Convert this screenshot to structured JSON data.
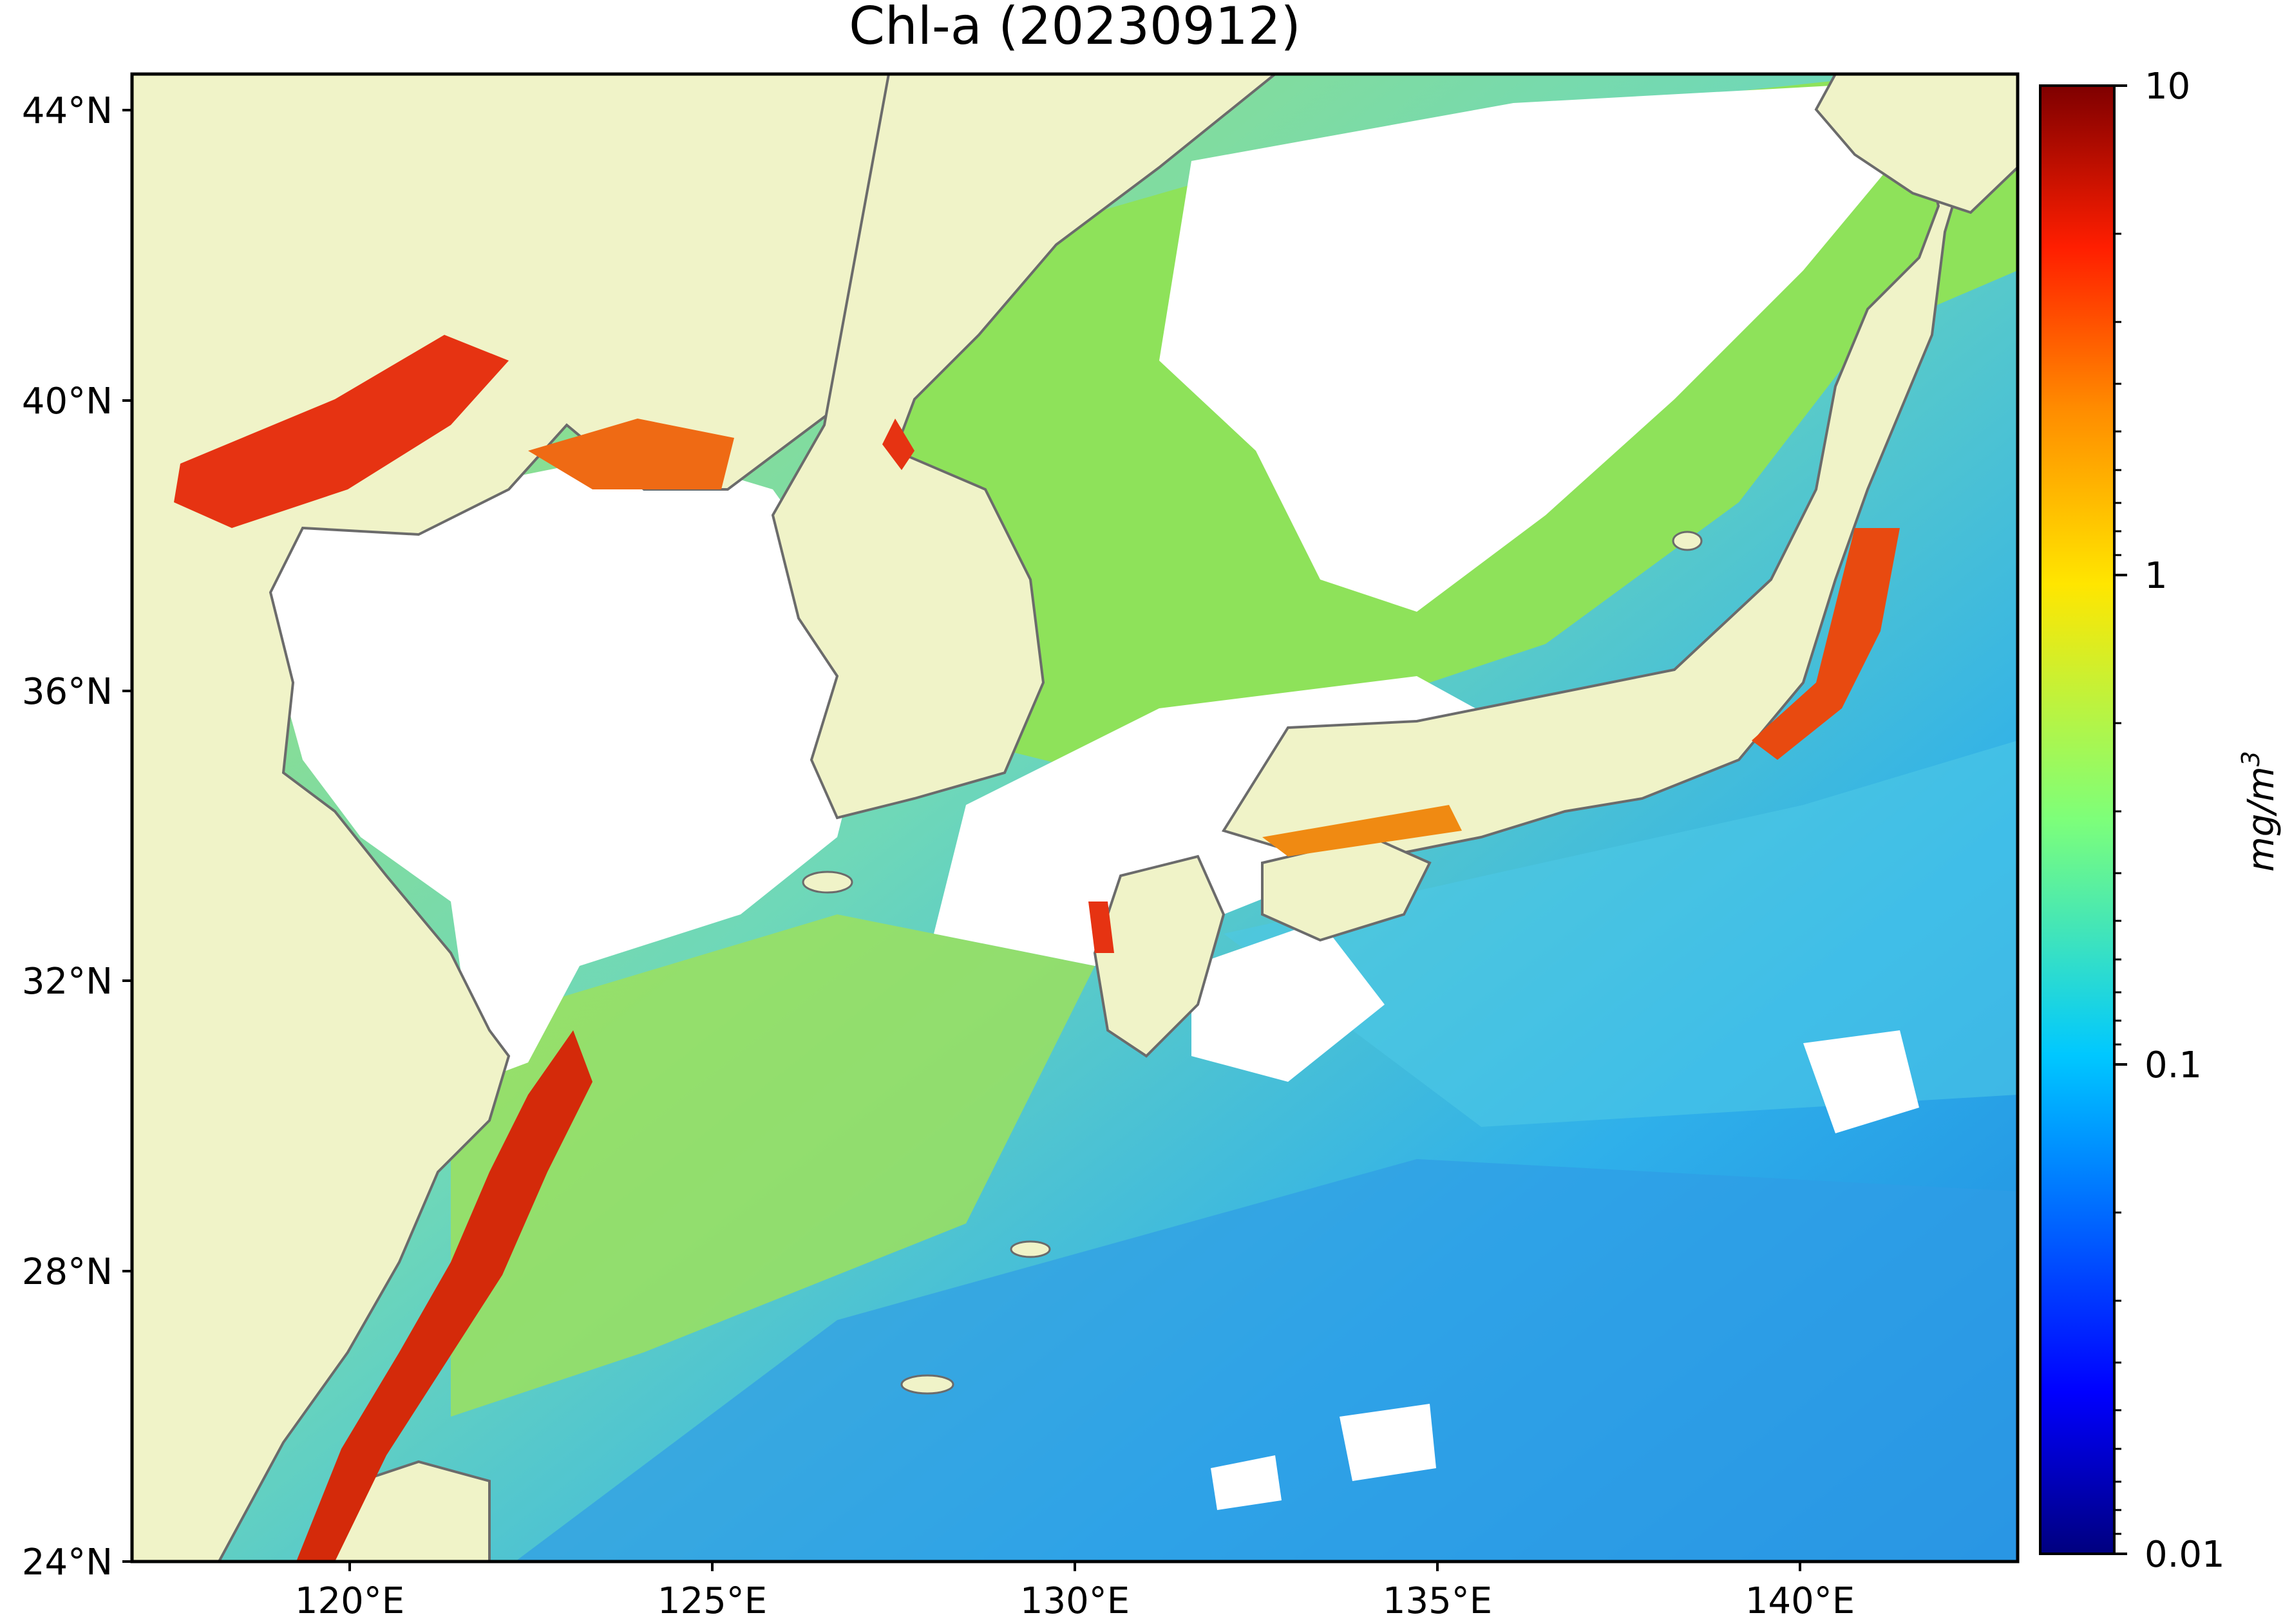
{
  "title": "Chl-a (20230912)",
  "axes": {
    "lon_ticks": [
      "120°E",
      "125°E",
      "130°E",
      "135°E",
      "140°E"
    ],
    "lat_ticks": [
      "24°N",
      "28°N",
      "32°N",
      "36°N",
      "40°N",
      "44°N"
    ],
    "lon_range": [
      117,
      143
    ],
    "lat_range": [
      24,
      44.5
    ]
  },
  "colorbar": {
    "label": "mg/m",
    "label_sup": "3",
    "scale": "log",
    "range": [
      0.01,
      10
    ],
    "ticks": [
      "10",
      "1",
      "0.1",
      "0.01"
    ],
    "colormap": "jet"
  },
  "colors": {
    "land": "#f0f3c8",
    "coast": "#6b6b6b",
    "no_data": "#ffffff",
    "high_chl": "#d42a0a",
    "mid_chl": "#86e05a",
    "low_chl": "#3aaee8"
  }
}
